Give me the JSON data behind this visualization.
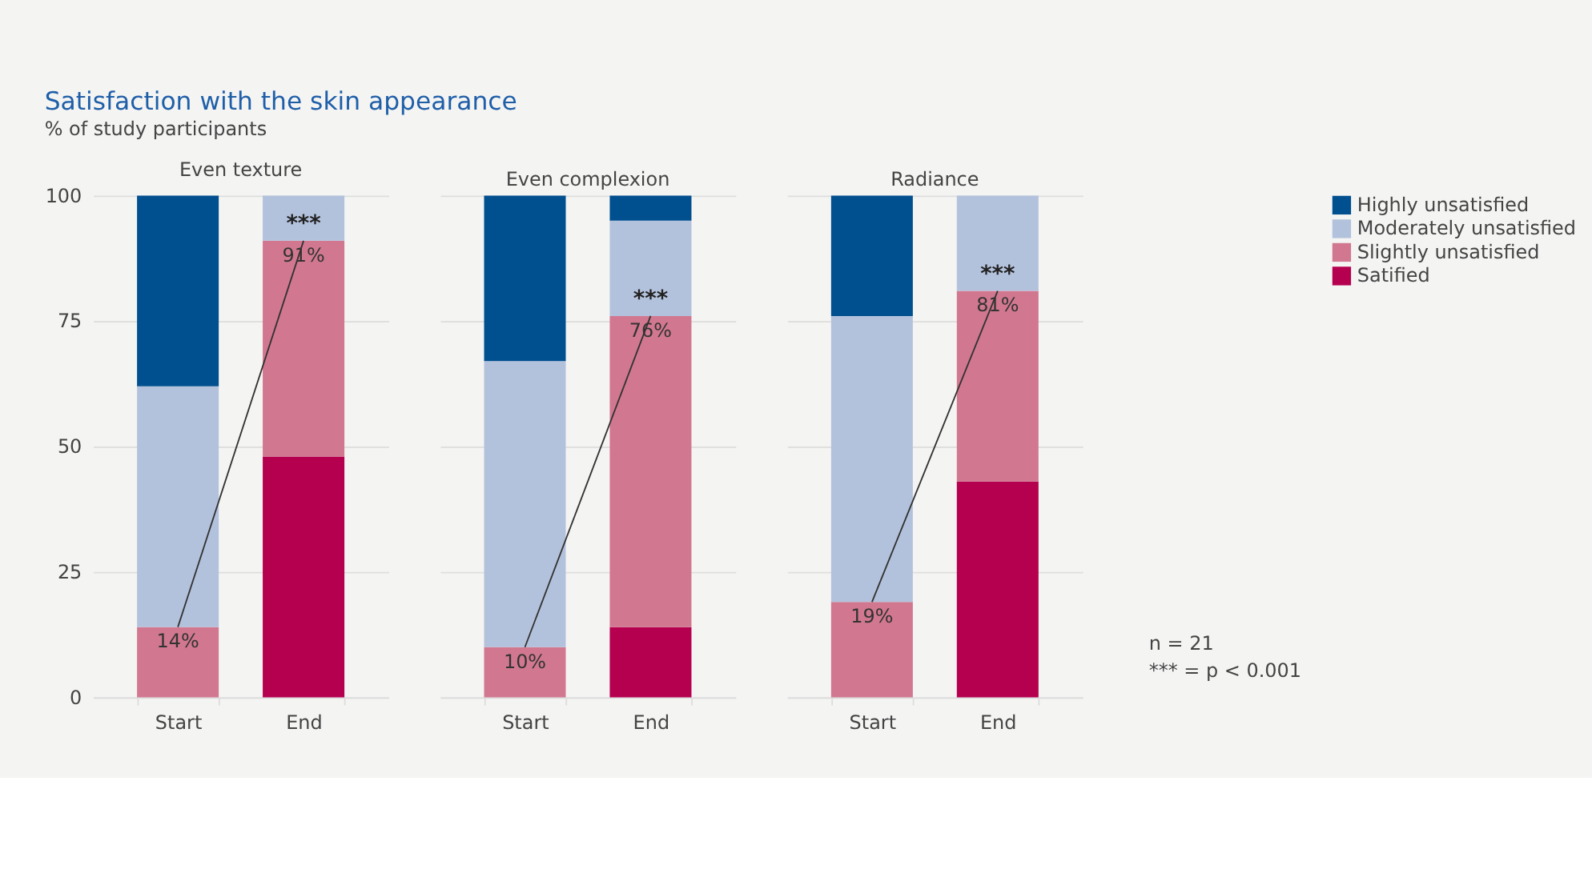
{
  "chart_data": [
    {
      "type": "bar",
      "title": "Even texture",
      "stacked": true,
      "categories": [
        "Start",
        "End"
      ],
      "ylim": [
        0,
        100
      ],
      "yticks": [
        0,
        25,
        50,
        75,
        100
      ],
      "grid": "y",
      "legend": "top right",
      "series": [
        {
          "name": "Satified",
          "color": "#b5004f",
          "values": [
            0,
            48
          ]
        },
        {
          "name": "Slightly unsatisfied",
          "color": "#d17890",
          "values": [
            14,
            43
          ]
        },
        {
          "name": "Moderately unsatisfied",
          "color": "#b3c2dc",
          "values": [
            48,
            9
          ]
        },
        {
          "name": "Highly unsatisfied",
          "color": "#004f8f",
          "values": [
            38,
            0
          ]
        },
        {
          "type": "line",
          "color": "#333333",
          "values": [
            14,
            91
          ]
        }
      ],
      "annotations": [
        "Satisfaction with the skin appearance",
        "% of study participants",
        {
          "text": "14%",
          "x": "Start",
          "y": 14
        },
        {
          "text": "91%",
          "x": "End",
          "y": 91
        },
        {
          "text": "***",
          "x": "End",
          "y": 91
        }
      ]
    },
    {
      "type": "bar",
      "title": "Even complexion",
      "stacked": true,
      "categories": [
        "Start",
        "End"
      ],
      "ylim": [
        0,
        100
      ],
      "yticks": [
        0,
        25,
        50,
        75,
        100
      ],
      "grid": "y",
      "tick_labels": "x",
      "series": [
        {
          "color": "#b5004f",
          "values": [
            0,
            14
          ]
        },
        {
          "color": "#d17890",
          "values": [
            10,
            62
          ]
        },
        {
          "color": "#b3c2dc",
          "values": [
            57,
            19
          ]
        },
        {
          "color": "#004f8f",
          "values": [
            33,
            5
          ]
        },
        {
          "type": "line",
          "color": "#333333",
          "values": [
            10,
            76
          ]
        }
      ],
      "annotations": [
        {
          "text": "10%",
          "x": "Start",
          "y": 10
        },
        {
          "text": "76%",
          "x": "End",
          "y": 76
        },
        {
          "text": "***",
          "x": "End",
          "y": 76
        }
      ]
    },
    {
      "type": "bar",
      "title": "Radiance",
      "stacked": true,
      "categories": [
        "Start",
        "End"
      ],
      "ylim": [
        0,
        100
      ],
      "yticks": [
        0,
        25,
        50,
        75,
        100
      ],
      "grid": "y",
      "tick_labels": "x",
      "series": [
        {
          "color": "#b5004f",
          "values": [
            0,
            43
          ]
        },
        {
          "color": "#d17890",
          "values": [
            19,
            38
          ]
        },
        {
          "color": "#b3c2dc",
          "values": [
            57,
            19
          ]
        },
        {
          "color": "#004f8f",
          "values": [
            24,
            0
          ]
        },
        {
          "type": "line",
          "color": "#333333",
          "values": [
            19,
            81
          ]
        }
      ],
      "annotations": [
        "n = 21",
        "*** = p < 0.001",
        {
          "text": "19%",
          "x": "Start",
          "y": 19
        },
        {
          "text": "81%",
          "x": "End",
          "y": 81
        },
        {
          "text": "***",
          "x": "End",
          "y": 81
        }
      ]
    }
  ]
}
